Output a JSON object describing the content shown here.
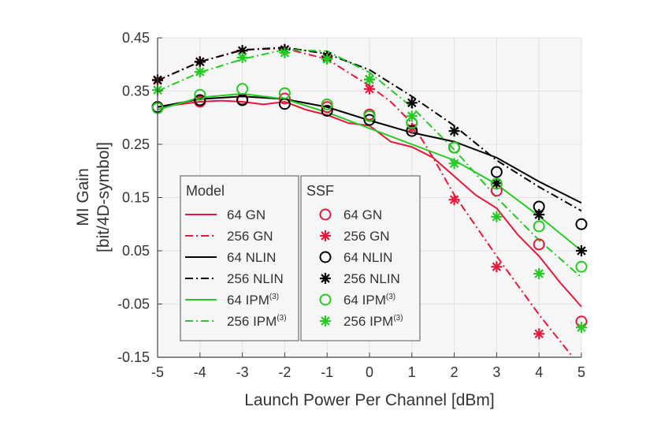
{
  "chart_data": {
    "type": "line",
    "xlabel": "Launch Power Per Channel [dBm]",
    "ylabel_lines": [
      "MI Gain",
      "[bit/4D-symbol]"
    ],
    "xlim": [
      -5,
      5
    ],
    "ylim": [
      -0.15,
      0.45
    ],
    "xticks": [
      -5,
      -4,
      -3,
      -2,
      -1,
      0,
      1,
      2,
      3,
      4,
      5
    ],
    "xtick_labels": [
      "-5",
      "-4",
      "-3",
      "-2",
      "-1",
      "0",
      "1",
      "2",
      "3",
      "4",
      "5"
    ],
    "yticks": [
      -0.15,
      -0.05,
      0.05,
      0.15,
      0.25,
      0.35,
      0.45
    ],
    "ytick_labels": [
      "-0.15",
      "-0.05",
      "0.05",
      "0.15",
      "0.25",
      "0.35",
      "0.45"
    ],
    "grid": true,
    "colors": {
      "gn": "#e8183c",
      "nlin": "#000000",
      "ipm": "#22cc22"
    },
    "legend_model_title": "Model",
    "legend_ssf_title": "SSF",
    "legend_placement": "bottom-left",
    "model_series": [
      {
        "name": "64 GN",
        "sup": "",
        "color": "#e8183c",
        "dash": "solid",
        "x": [
          -5,
          -4.5,
          -4,
          -3.5,
          -3,
          -2.5,
          -2,
          -1.5,
          -1,
          -0.5,
          0,
          0.5,
          1,
          1.5,
          2,
          2.5,
          3,
          3.5,
          4,
          4.5,
          5
        ],
        "y": [
          0.32,
          0.325,
          0.33,
          0.332,
          0.33,
          0.325,
          0.33,
          0.315,
          0.305,
          0.29,
          0.285,
          0.255,
          0.245,
          0.225,
          0.19,
          0.155,
          0.13,
          0.08,
          0.04,
          -0.01,
          -0.055
        ]
      },
      {
        "name": "256 GN",
        "sup": "",
        "color": "#e8183c",
        "dash": "dashdot",
        "x": [
          -5,
          -4,
          -3,
          -2,
          -1,
          0,
          0.5,
          1,
          1.5,
          2,
          3,
          4,
          4.8
        ],
        "y": [
          0.37,
          0.405,
          0.428,
          0.43,
          0.41,
          0.36,
          0.33,
          0.29,
          0.225,
          0.155,
          0.04,
          -0.07,
          -0.15
        ]
      },
      {
        "name": "64 NLIN",
        "sup": "",
        "color": "#000000",
        "dash": "solid",
        "x": [
          -5,
          -4,
          -3,
          -2,
          -1,
          0,
          1,
          2,
          3,
          4,
          5
        ],
        "y": [
          0.32,
          0.335,
          0.34,
          0.335,
          0.32,
          0.295,
          0.272,
          0.255,
          0.225,
          0.18,
          0.14
        ]
      },
      {
        "name": "256 NLIN",
        "sup": "",
        "color": "#000000",
        "dash": "dashdot",
        "x": [
          -5,
          -4,
          -3,
          -2,
          -1,
          0,
          1,
          2,
          3,
          4,
          5
        ],
        "y": [
          0.37,
          0.405,
          0.427,
          0.432,
          0.42,
          0.39,
          0.34,
          0.285,
          0.22,
          0.17,
          0.125
        ]
      },
      {
        "name": "64 IPM",
        "sup": "(3)",
        "color": "#22cc22",
        "dash": "solid",
        "x": [
          -5,
          -4,
          -3,
          -2,
          -1,
          0,
          1,
          2,
          3,
          4,
          5
        ],
        "y": [
          0.315,
          0.338,
          0.345,
          0.335,
          0.31,
          0.28,
          0.25,
          0.22,
          0.175,
          0.115,
          0.05
        ]
      },
      {
        "name": "256 IPM",
        "sup": "(3)",
        "color": "#22cc22",
        "dash": "dashdot",
        "x": [
          -5,
          -4,
          -3,
          -2,
          -1,
          0,
          1,
          2,
          3,
          4,
          5
        ],
        "y": [
          0.35,
          0.385,
          0.41,
          0.428,
          0.425,
          0.385,
          0.32,
          0.24,
          0.15,
          0.07,
          0.0
        ]
      }
    ],
    "ssf_series": [
      {
        "name": "64 GN",
        "sup": "",
        "color": "#e8183c",
        "marker": "circle",
        "x": [
          -5,
          -4,
          -3,
          -2,
          -1,
          0,
          1,
          2,
          3,
          4,
          5
        ],
        "y": [
          0.32,
          0.33,
          0.335,
          0.336,
          0.32,
          0.306,
          0.29,
          0.244,
          0.163,
          0.062,
          -0.083
        ]
      },
      {
        "name": "256 GN",
        "sup": "",
        "color": "#e8183c",
        "marker": "star",
        "x": [
          -5,
          -4,
          -3,
          -2,
          -1,
          0,
          1,
          2,
          3,
          4
        ],
        "y": [
          0.37,
          0.405,
          0.426,
          0.428,
          0.412,
          0.354,
          0.28,
          0.146,
          0.02,
          -0.106
        ]
      },
      {
        "name": "64 NLIN",
        "sup": "",
        "color": "#000000",
        "marker": "circle",
        "x": [
          -5,
          -4,
          -3,
          -2,
          -1,
          0,
          1,
          2,
          3,
          4,
          5
        ],
        "y": [
          0.32,
          0.333,
          0.333,
          0.326,
          0.313,
          0.296,
          0.275,
          0.244,
          0.198,
          0.133,
          0.1
        ]
      },
      {
        "name": "256 NLIN",
        "sup": "",
        "color": "#000000",
        "marker": "star",
        "x": [
          -5,
          -4,
          -3,
          -2,
          -1,
          0,
          1,
          2,
          3,
          4,
          5
        ],
        "y": [
          0.371,
          0.405,
          0.426,
          0.428,
          0.415,
          0.372,
          0.328,
          0.275,
          0.177,
          0.118,
          0.05
        ]
      },
      {
        "name": "64 IPM",
        "sup": "(3)",
        "color": "#22cc22",
        "marker": "circle",
        "x": [
          -5,
          -4,
          -3,
          -2,
          -1,
          0,
          1,
          2,
          3,
          4,
          5
        ],
        "y": [
          0.318,
          0.343,
          0.354,
          0.346,
          0.325,
          0.303,
          0.29,
          0.244,
          0.176,
          0.096,
          0.02
        ]
      },
      {
        "name": "256 IPM",
        "sup": "(3)",
        "color": "#22cc22",
        "marker": "star",
        "x": [
          -5,
          -4,
          -3,
          -2,
          -1,
          0,
          1,
          2,
          3,
          4,
          5
        ],
        "y": [
          0.352,
          0.386,
          0.413,
          0.422,
          0.41,
          0.372,
          0.303,
          0.214,
          0.114,
          0.007,
          -0.094
        ]
      }
    ]
  }
}
